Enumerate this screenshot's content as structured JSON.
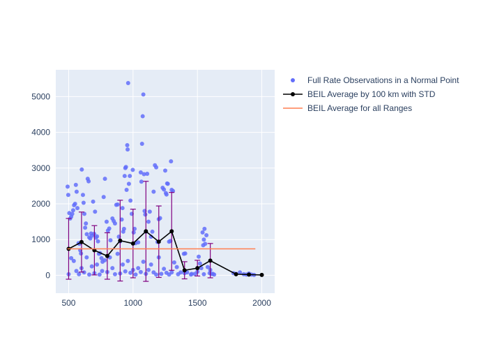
{
  "chart_data": {
    "type": "scatter",
    "xlim": [
      400,
      2100
    ],
    "ylim": [
      -500,
      5750
    ],
    "xticks": [
      500,
      1000,
      1500,
      2000
    ],
    "yticks": [
      0,
      1000,
      2000,
      3000,
      4000,
      5000
    ],
    "grid": true,
    "legend_position": "top-right",
    "colors": {
      "plot_bg": "#e5ecf6",
      "grid": "#ffffff",
      "scatter": "#636efa",
      "avg_line": "#000000",
      "error_bar": "#800080",
      "overall_line": "#ff7f50"
    },
    "legend": [
      {
        "label": "Full Rate Observations in a Normal Point",
        "kind": "scatter"
      },
      {
        "label": "BEIL Average by 100 km with STD",
        "kind": "line-marker"
      },
      {
        "label": "BEIL Average for all Ranges",
        "kind": "line"
      }
    ],
    "series": [
      {
        "kind": "scatter",
        "points": [
          [
            492,
            2480
          ],
          [
            497,
            2250
          ],
          [
            505,
            1740
          ],
          [
            512,
            1590
          ],
          [
            520,
            1640
          ],
          [
            528,
            1720
          ],
          [
            535,
            1820
          ],
          [
            542,
            1960
          ],
          [
            550,
            2000
          ],
          [
            556,
            2530
          ],
          [
            562,
            2340
          ],
          [
            568,
            1880
          ],
          [
            577,
            900
          ],
          [
            583,
            880
          ],
          [
            590,
            700
          ],
          [
            596,
            610
          ],
          [
            602,
            2960
          ],
          [
            611,
            2250
          ],
          [
            616,
            2030
          ],
          [
            622,
            1720
          ],
          [
            628,
            1330
          ],
          [
            634,
            1450
          ],
          [
            641,
            1150
          ],
          [
            648,
            2700
          ],
          [
            655,
            2630
          ],
          [
            660,
            1060
          ],
          [
            668,
            1030
          ],
          [
            674,
            1170
          ],
          [
            682,
            1110
          ],
          [
            690,
            2060
          ],
          [
            698,
            1160
          ],
          [
            705,
            1780
          ],
          [
            712,
            1050
          ],
          [
            720,
            1090
          ],
          [
            728,
            950
          ],
          [
            735,
            600
          ],
          [
            744,
            620
          ],
          [
            755,
            480
          ],
          [
            763,
            380
          ],
          [
            772,
            2190
          ],
          [
            782,
            2700
          ],
          [
            795,
            1500
          ],
          [
            805,
            1250
          ],
          [
            815,
            1310
          ],
          [
            825,
            980
          ],
          [
            840,
            1590
          ],
          [
            850,
            1520
          ],
          [
            860,
            1450
          ],
          [
            870,
            1970
          ],
          [
            880,
            1980
          ],
          [
            890,
            1080
          ],
          [
            900,
            950
          ],
          [
            912,
            1560
          ],
          [
            918,
            1880
          ],
          [
            924,
            1220
          ],
          [
            930,
            1300
          ],
          [
            935,
            2780
          ],
          [
            940,
            3000
          ],
          [
            945,
            3030
          ],
          [
            950,
            2390
          ],
          [
            955,
            3640
          ],
          [
            958,
            3520
          ],
          [
            962,
            5380
          ],
          [
            968,
            2560
          ],
          [
            975,
            2780
          ],
          [
            980,
            2090
          ],
          [
            990,
            1720
          ],
          [
            998,
            2950
          ],
          [
            1005,
            1200
          ],
          [
            1012,
            1300
          ],
          [
            1020,
            900
          ],
          [
            1040,
            920
          ],
          [
            1060,
            2880
          ],
          [
            1065,
            2620
          ],
          [
            1070,
            3680
          ],
          [
            1075,
            4450
          ],
          [
            1080,
            5060
          ],
          [
            1085,
            2830
          ],
          [
            1090,
            1800
          ],
          [
            1095,
            1700
          ],
          [
            1100,
            1220
          ],
          [
            1110,
            2840
          ],
          [
            1120,
            1500
          ],
          [
            1130,
            1780
          ],
          [
            1140,
            1080
          ],
          [
            1150,
            1220
          ],
          [
            1160,
            2340
          ],
          [
            1170,
            3080
          ],
          [
            1180,
            3020
          ],
          [
            1190,
            930
          ],
          [
            1200,
            1570
          ],
          [
            1210,
            1600
          ],
          [
            1230,
            2450
          ],
          [
            1240,
            2400
          ],
          [
            1250,
            2930
          ],
          [
            1255,
            2300
          ],
          [
            1260,
            2260
          ],
          [
            1265,
            2570
          ],
          [
            1270,
            2560
          ],
          [
            1280,
            940
          ],
          [
            1290,
            960
          ],
          [
            1295,
            3190
          ],
          [
            1300,
            2390
          ],
          [
            1310,
            2360
          ],
          [
            1320,
            360
          ],
          [
            1340,
            230
          ],
          [
            1370,
            80
          ],
          [
            1395,
            600
          ],
          [
            1405,
            610
          ],
          [
            1420,
            80
          ],
          [
            1455,
            40
          ],
          [
            1480,
            40
          ],
          [
            1500,
            200
          ],
          [
            1510,
            520
          ],
          [
            1520,
            330
          ],
          [
            1530,
            200
          ],
          [
            1540,
            1200
          ],
          [
            1545,
            840
          ],
          [
            1550,
            1000
          ],
          [
            1555,
            1300
          ],
          [
            1560,
            880
          ],
          [
            1570,
            1120
          ],
          [
            1580,
            230
          ],
          [
            1595,
            60
          ],
          [
            1610,
            40
          ],
          [
            1620,
            40
          ],
          [
            1630,
            20
          ],
          [
            1780,
            60
          ],
          [
            1800,
            40
          ],
          [
            1830,
            80
          ],
          [
            1860,
            30
          ],
          [
            1880,
            20
          ],
          [
            1900,
            50
          ],
          [
            1920,
            20
          ],
          [
            1940,
            10
          ],
          [
            500,
            30
          ],
          [
            520,
            480
          ],
          [
            540,
            400
          ],
          [
            560,
            120
          ],
          [
            580,
            30
          ],
          [
            600,
            200
          ],
          [
            620,
            80
          ],
          [
            640,
            500
          ],
          [
            660,
            20
          ],
          [
            680,
            250
          ],
          [
            700,
            60
          ],
          [
            720,
            300
          ],
          [
            740,
            20
          ],
          [
            760,
            120
          ],
          [
            780,
            420
          ],
          [
            800,
            90
          ],
          [
            820,
            500
          ],
          [
            840,
            200
          ],
          [
            860,
            30
          ],
          [
            880,
            600
          ],
          [
            900,
            50
          ],
          [
            920,
            300
          ],
          [
            940,
            110
          ],
          [
            960,
            400
          ],
          [
            980,
            70
          ],
          [
            1000,
            150
          ],
          [
            1020,
            20
          ],
          [
            1040,
            200
          ],
          [
            1060,
            90
          ],
          [
            1080,
            380
          ],
          [
            1100,
            40
          ],
          [
            1120,
            150
          ],
          [
            1140,
            300
          ],
          [
            1160,
            80
          ],
          [
            1180,
            20
          ],
          [
            1200,
            500
          ],
          [
            1220,
            40
          ],
          [
            1240,
            180
          ],
          [
            1260,
            70
          ],
          [
            1280,
            20
          ],
          [
            1300,
            80
          ],
          [
            1350,
            30
          ],
          [
            1400,
            60
          ],
          [
            1450,
            20
          ],
          [
            1500,
            100
          ],
          [
            1550,
            30
          ],
          [
            1600,
            150
          ]
        ]
      },
      {
        "kind": "line-with-error-bars",
        "x": [
          500,
          600,
          700,
          800,
          900,
          1000,
          1100,
          1200,
          1300,
          1400,
          1500,
          1600,
          1800,
          1900,
          2000
        ],
        "y": [
          740,
          930,
          700,
          540,
          970,
          890,
          1230,
          940,
          1230,
          140,
          200,
          410,
          30,
          20,
          10
        ],
        "std": [
          850,
          840,
          690,
          650,
          1130,
          960,
          1400,
          1000,
          1090,
          240,
          220,
          480,
          0,
          0,
          0
        ]
      },
      {
        "kind": "line",
        "x": [
          490,
          1950
        ],
        "y": [
          740,
          740
        ]
      }
    ]
  }
}
